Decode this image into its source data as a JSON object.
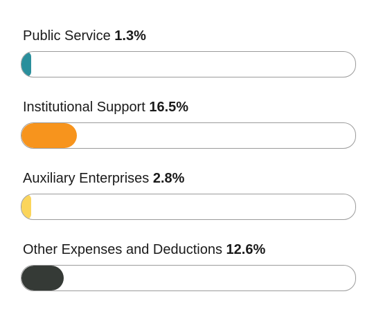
{
  "chart_data": {
    "type": "bar",
    "orientation": "horizontal-progress",
    "unit": "%",
    "scale_max": 100,
    "items": [
      {
        "label": "Public Service",
        "value": 1.3,
        "value_text": "1.3%",
        "color": "#2a8f9c"
      },
      {
        "label": "Institutional Support",
        "value": 16.5,
        "value_text": "16.5%",
        "color": "#f7941d"
      },
      {
        "label": "Auxiliary Enterprises",
        "value": 2.8,
        "value_text": "2.8%",
        "color": "#fbd55b"
      },
      {
        "label": "Other Expenses and Deductions",
        "value": 12.6,
        "value_text": "12.6%",
        "color": "#353a36"
      }
    ]
  }
}
